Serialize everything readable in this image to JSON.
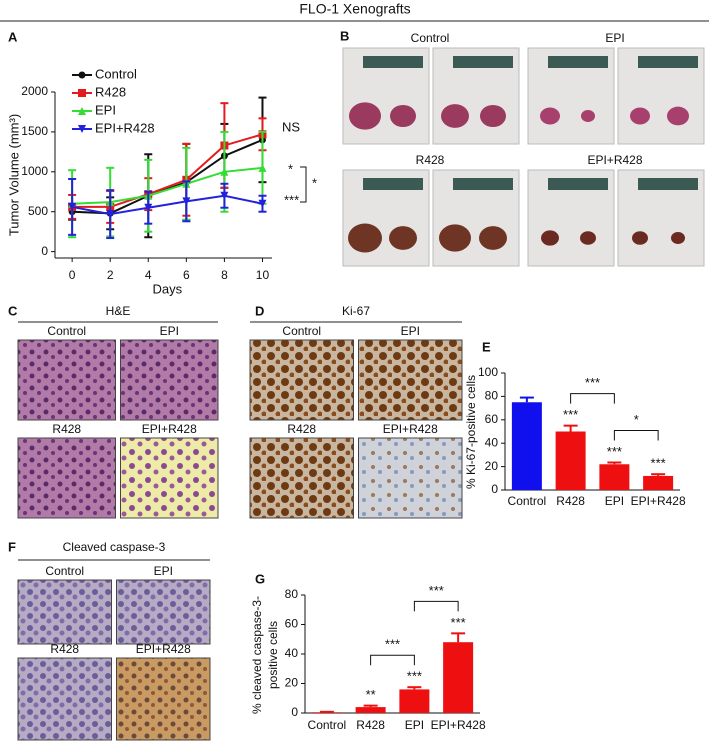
{
  "figure_title": "FLO-1 Xenografts",
  "chart_data": [
    {
      "type": "line",
      "panel": "A",
      "xlabel": "Days",
      "ylabel": "Tumor Volume (mm³)",
      "x": [
        0,
        2,
        4,
        6,
        8,
        10
      ],
      "xlim": [
        -0.9,
        10.5
      ],
      "xticks": [
        0,
        2,
        4,
        6,
        8,
        10
      ],
      "ylim": [
        -80,
        2000
      ],
      "yticks": [
        0,
        500,
        1000,
        1500,
        2000
      ],
      "series": [
        {
          "name": "Control",
          "color": "#111111",
          "marker": "circle",
          "values": [
            500,
            480,
            700,
            870,
            1200,
            1400
          ],
          "errors": [
            100,
            200,
            520,
            480,
            400,
            530
          ]
        },
        {
          "name": "R428",
          "color": "#e41a1c",
          "marker": "square",
          "values": [
            560,
            560,
            720,
            900,
            1330,
            1470
          ],
          "errors": [
            150,
            200,
            200,
            450,
            530,
            200
          ]
        },
        {
          "name": "EPI",
          "color": "#33dd33",
          "marker": "triangle-up",
          "values": [
            600,
            620,
            700,
            850,
            1000,
            1050
          ],
          "errors": [
            420,
            430,
            450,
            450,
            500,
            450
          ]
        },
        {
          "name": "EPI+R428",
          "color": "#2222dd",
          "marker": "triangle-down",
          "values": [
            560,
            470,
            550,
            630,
            700,
            600
          ],
          "errors": [
            350,
            300,
            200,
            250,
            150,
            100
          ]
        }
      ],
      "annotations": [
        "NS",
        "*",
        "***",
        "*"
      ]
    },
    {
      "type": "bar",
      "panel": "E",
      "ylabel": "% Ki-67-positive cells",
      "categories": [
        "Control",
        "R428",
        "EPI",
        "EPI+R428"
      ],
      "values": [
        75,
        50,
        22,
        12
      ],
      "errors": [
        4,
        5,
        1.5,
        1.5
      ],
      "colors": [
        "#1010ee",
        "#ee1010",
        "#ee1010",
        "#ee1010"
      ],
      "significance": [
        null,
        "***",
        "***",
        "***"
      ],
      "comparisons": [
        {
          "categories": [
            "R428",
            "EPI"
          ],
          "label": "***"
        },
        {
          "categories": [
            "EPI",
            "EPI+R428"
          ],
          "label": "*"
        }
      ],
      "ylim": [
        0,
        100
      ],
      "yticks": [
        0,
        20,
        40,
        60,
        80,
        100
      ]
    },
    {
      "type": "bar",
      "panel": "G",
      "ylabel": [
        "% cleaved caspase-3-",
        "positive cells"
      ],
      "categories": [
        "Control",
        "R428",
        "EPI",
        "EPI+R428"
      ],
      "values": [
        0.5,
        4,
        16,
        48
      ],
      "errors": [
        0.3,
        1,
        1.5,
        6
      ],
      "colors": [
        "#ee1010",
        "#ee1010",
        "#ee1010",
        "#ee1010"
      ],
      "significance": [
        null,
        "**",
        "***",
        "***"
      ],
      "comparisons": [
        {
          "categories": [
            "R428",
            "EPI"
          ],
          "label": "***"
        },
        {
          "categories": [
            "EPI",
            "EPI+R428"
          ],
          "label": "***"
        }
      ],
      "ylim": [
        0,
        80
      ],
      "yticks": [
        0,
        20,
        40,
        60,
        80
      ]
    }
  ],
  "image_panels": [
    {
      "panel": "B",
      "subpanels": [
        "Control",
        "EPI",
        "R428",
        "EPI+R428"
      ]
    },
    {
      "panel": "C",
      "title": "H&E",
      "subpanels": [
        "Control",
        "EPI",
        "R428",
        "EPI+R428"
      ]
    },
    {
      "panel": "D",
      "title": "Ki-67",
      "subpanels": [
        "Control",
        "EPI",
        "R428",
        "EPI+R428"
      ]
    },
    {
      "panel": "F",
      "title": "Cleaved caspase-3",
      "subpanels": [
        "Control",
        "EPI",
        "R428",
        "EPI+R428"
      ]
    }
  ]
}
